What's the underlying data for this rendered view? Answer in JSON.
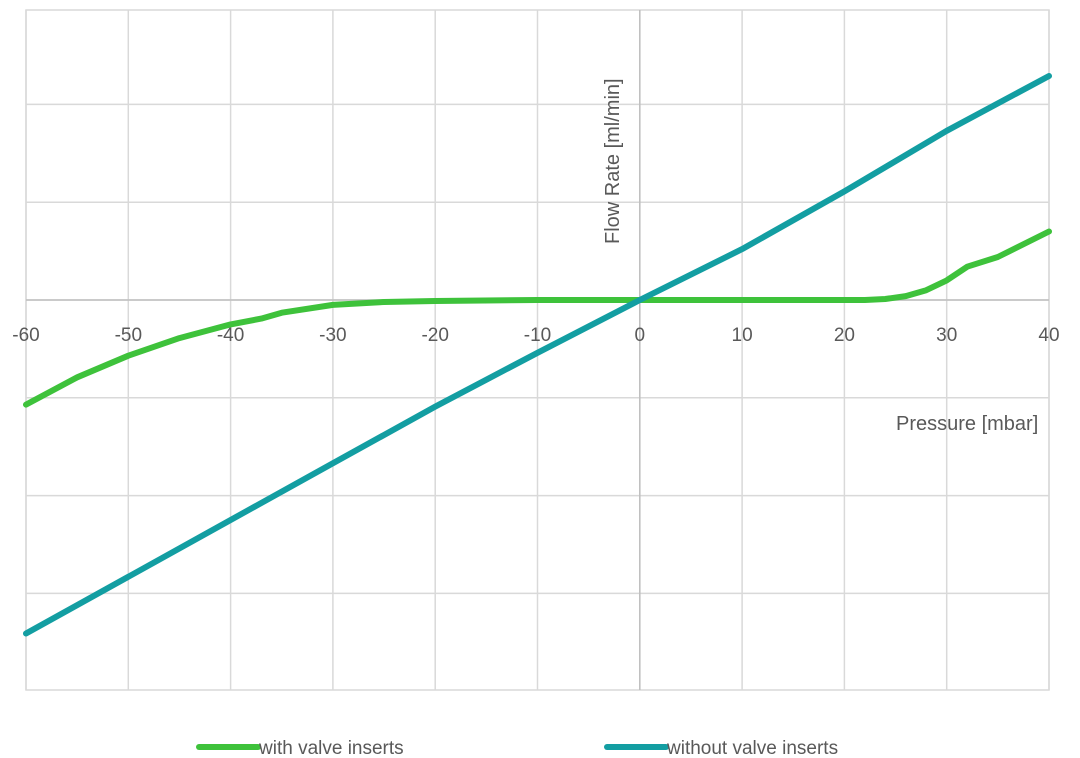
{
  "chart_data": {
    "type": "line",
    "title": "",
    "xlabel": "Pressure [mbar]",
    "ylabel": "Flow Rate [ml/min]",
    "xlim": [
      -60,
      40
    ],
    "ylim": [
      -4,
      3
    ],
    "xticks": [
      -60,
      -50,
      -40,
      -30,
      -20,
      -10,
      0,
      10,
      20,
      30,
      40
    ],
    "xtick_labels": [
      "-60",
      "-50",
      "-40",
      "-30",
      "-20",
      "-10",
      "0",
      "10",
      "20",
      "30",
      "40"
    ],
    "yticks": [
      -4,
      -3,
      -2,
      -1,
      0,
      1,
      2,
      3
    ],
    "grid": true,
    "legend_position": "bottom",
    "series": [
      {
        "name": "with valve inserts",
        "color": "#3ec23b",
        "x": [
          -60,
          -55,
          -50,
          -45,
          -40,
          -37,
          -35,
          -30,
          -25,
          -20,
          -10,
          0,
          10,
          20,
          22,
          24,
          26,
          28,
          30,
          32,
          35,
          40
        ],
        "y": [
          -1.07,
          -0.79,
          -0.57,
          -0.39,
          -0.25,
          -0.19,
          -0.13,
          -0.05,
          -0.02,
          -0.01,
          0,
          0,
          0,
          0,
          0,
          0.01,
          0.04,
          0.1,
          0.2,
          0.34,
          0.44,
          0.7
        ]
      },
      {
        "name": "without valve inserts",
        "color": "#139ea2",
        "x": [
          -60,
          -50,
          -40,
          -30,
          -20,
          -10,
          0,
          10,
          20,
          30,
          40
        ],
        "y": [
          -3.41,
          -2.83,
          -2.25,
          -1.67,
          -1.09,
          -0.54,
          0,
          0.52,
          1.11,
          1.73,
          2.29
        ]
      }
    ]
  }
}
